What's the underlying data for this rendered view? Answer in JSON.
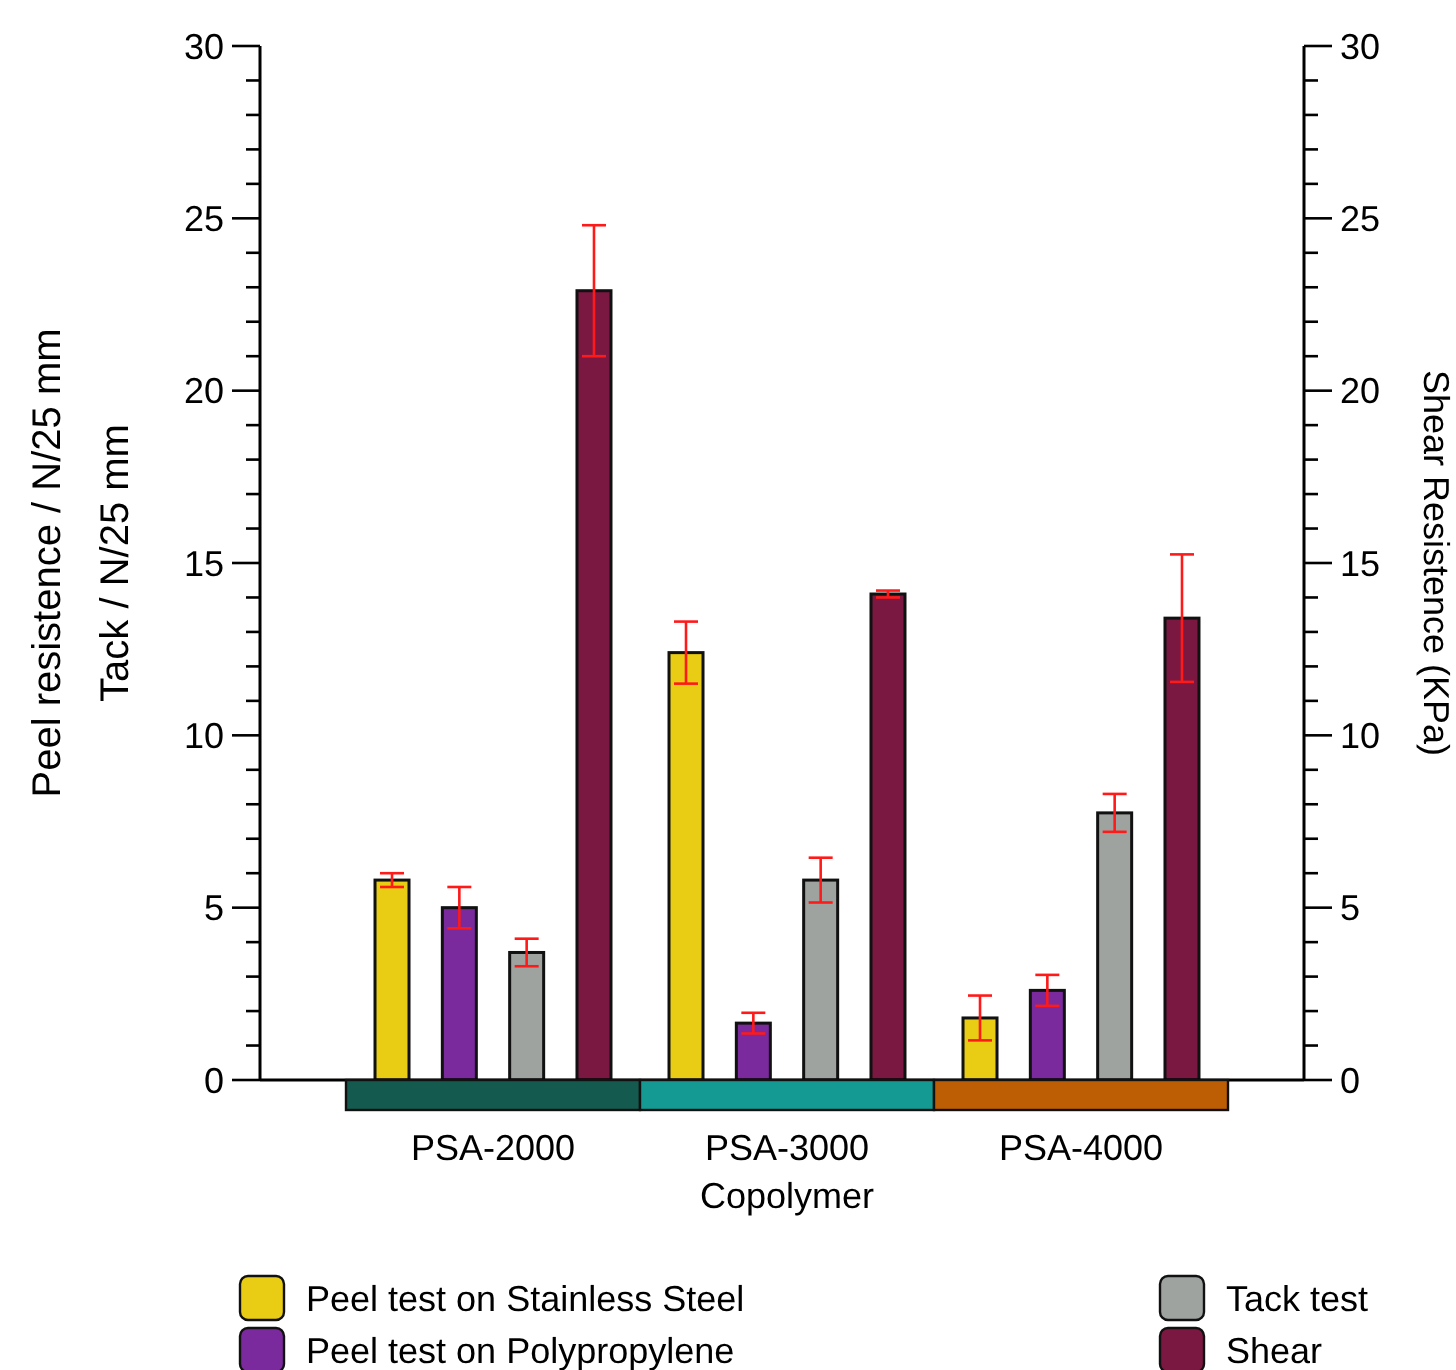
{
  "chart_data": {
    "type": "bar",
    "xlabel": "Copolymer",
    "ylabel": "Peel resistence / N/25 mm\nTack / N/25 mm",
    "y2label": "Shear Resistence (KPa)",
    "categories": [
      "PSA-2000",
      "PSA-3000",
      "PSA-4000"
    ],
    "series": [
      {
        "name": "Peel test on Stainless Steel",
        "color": "#e8cd14",
        "values": [
          5.8,
          12.4,
          1.8
        ],
        "errors": [
          0.2,
          0.9,
          0.65
        ]
      },
      {
        "name": "Peel test on Polypropylene",
        "color": "#7a2a9c",
        "values": [
          5.0,
          1.65,
          2.6
        ],
        "errors": [
          0.6,
          0.3,
          0.45
        ]
      },
      {
        "name": "Tack test",
        "color": "#9fa3a0",
        "values": [
          3.7,
          5.8,
          7.75
        ],
        "errors": [
          0.4,
          0.65,
          0.55
        ]
      },
      {
        "name": "Shear",
        "color": "#7b1842",
        "axis": "y2",
        "values": [
          22.9,
          14.1,
          13.4
        ],
        "errors": [
          1.9,
          0.1,
          1.85
        ]
      }
    ],
    "ylim": [
      0,
      30
    ],
    "yticks": [
      0,
      {
        "value": 1,
        "label": null
      },
      {
        "value": 2,
        "label": null
      },
      {
        "value": 3,
        "label": null
      },
      {
        "value": 4,
        "label": null
      },
      5,
      {
        "value": 6,
        "label": null
      },
      {
        "value": 7,
        "label": null
      },
      {
        "value": 8,
        "label": null
      },
      {
        "value": 9,
        "label": null
      },
      10,
      {
        "value": 11,
        "label": null
      },
      {
        "value": 12,
        "label": null
      },
      {
        "value": 13,
        "label": null
      },
      {
        "value": 14,
        "label": null
      },
      15,
      {
        "value": 16,
        "label": null
      },
      {
        "value": 17,
        "label": null
      },
      {
        "value": 18,
        "label": null
      },
      {
        "value": 19,
        "label": null
      },
      20,
      {
        "value": 21,
        "label": null
      },
      {
        "value": 22,
        "label": null
      },
      {
        "value": 23,
        "label": null
      },
      {
        "value": 24,
        "label": null
      },
      25,
      {
        "value": 26,
        "label": null
      },
      {
        "value": 27,
        "label": null
      },
      {
        "value": 28,
        "label": null
      },
      {
        "value": 29,
        "label": null
      },
      30
    ],
    "y2lim": [
      0,
      30
    ],
    "y2ticks": [
      0,
      {
        "value": 1,
        "label": null
      },
      {
        "value": 2,
        "label": null
      },
      {
        "value": 3,
        "label": null
      },
      {
        "value": 4,
        "label": null
      },
      5,
      {
        "value": 6,
        "label": null
      },
      {
        "value": 7,
        "label": null
      },
      {
        "value": 8,
        "label": null
      },
      {
        "value": 9,
        "label": null
      },
      10,
      {
        "value": 11,
        "label": null
      },
      {
        "value": 12,
        "label": null
      },
      {
        "value": 13,
        "label": null
      },
      {
        "value": 14,
        "label": null
      },
      15,
      {
        "value": 16,
        "label": null
      },
      {
        "value": 17,
        "label": null
      },
      {
        "value": 18,
        "label": null
      },
      {
        "value": 19,
        "label": null
      },
      20,
      {
        "value": 21,
        "label": null
      },
      {
        "value": 22,
        "label": null
      },
      {
        "value": 23,
        "label": null
      },
      {
        "value": 24,
        "label": null
      },
      25,
      {
        "value": 26,
        "label": null
      },
      {
        "value": 27,
        "label": null
      },
      {
        "value": 28,
        "label": null
      },
      {
        "value": 29,
        "label": null
      },
      30
    ],
    "grid": false,
    "legend": "bottom"
  }
}
